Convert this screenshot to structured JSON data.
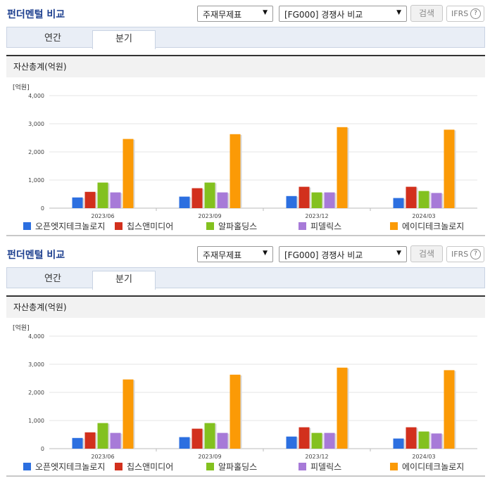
{
  "panels": [
    {
      "title": "펀더멘털 비교",
      "select_statement": "주재무제표",
      "select_compare": "[FG000] 경쟁사 비교",
      "search_label": "검색",
      "ifrs_label": "IFRS",
      "help_label": "?",
      "tabs": [
        {
          "label": "연간"
        },
        {
          "label": "분기"
        }
      ],
      "active_tab": "분기",
      "section_title": "자산총계(억원)",
      "unit_label": "[억원]"
    },
    {
      "title": "펀더멘털 비교",
      "select_statement": "주재무제표",
      "select_compare": "[FG000] 경쟁사 비교",
      "search_label": "검색",
      "ifrs_label": "IFRS",
      "help_label": "?",
      "tabs": [
        {
          "label": "연간"
        },
        {
          "label": "분기"
        }
      ],
      "active_tab": "분기",
      "section_title": "자산총계(억원)",
      "unit_label": "[억원]"
    }
  ],
  "chart_data": [
    {
      "type": "bar",
      "ylabel": "[억원]",
      "ylim": [
        0,
        4000
      ],
      "yticks": [
        "0",
        "1,000",
        "2,000",
        "3,000",
        "4,000"
      ],
      "categories": [
        "2023/06",
        "2023/09",
        "2023/12",
        "2024/03"
      ],
      "grid": true,
      "legend_position": "bottom",
      "series": [
        {
          "name": "오픈엣지테크놀로지",
          "color": "#2c6fe0",
          "values": [
            380,
            410,
            430,
            360
          ]
        },
        {
          "name": "칩스앤미디어",
          "color": "#d2301d",
          "values": [
            580,
            710,
            760,
            760
          ]
        },
        {
          "name": "알파홀딩스",
          "color": "#83c11f",
          "values": [
            910,
            910,
            560,
            610
          ]
        },
        {
          "name": "피델릭스",
          "color": "#a77ad8",
          "values": [
            560,
            560,
            560,
            540
          ]
        },
        {
          "name": "에이디테크놀로지",
          "color": "#fb9a06",
          "values": [
            2460,
            2630,
            2880,
            2790
          ]
        }
      ]
    },
    {
      "type": "bar",
      "ylabel": "[억원]",
      "ylim": [
        0,
        4000
      ],
      "yticks": [
        "0",
        "1,000",
        "2,000",
        "3,000",
        "4,000"
      ],
      "categories": [
        "2023/06",
        "2023/09",
        "2023/12",
        "2024/03"
      ],
      "grid": true,
      "legend_position": "bottom",
      "series": [
        {
          "name": "오픈엣지테크놀로지",
          "color": "#2c6fe0",
          "values": [
            380,
            410,
            430,
            360
          ]
        },
        {
          "name": "칩스앤미디어",
          "color": "#d2301d",
          "values": [
            580,
            710,
            760,
            760
          ]
        },
        {
          "name": "알파홀딩스",
          "color": "#83c11f",
          "values": [
            910,
            910,
            560,
            610
          ]
        },
        {
          "name": "피델릭스",
          "color": "#a77ad8",
          "values": [
            560,
            560,
            560,
            540
          ]
        },
        {
          "name": "에이디테크놀로지",
          "color": "#fb9a06",
          "values": [
            2460,
            2630,
            2880,
            2790
          ]
        }
      ]
    }
  ]
}
